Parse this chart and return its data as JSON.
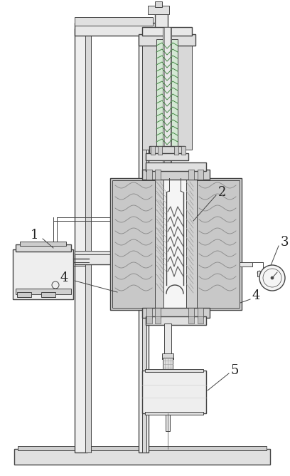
{
  "bg_color": "#ffffff",
  "lc": "#666666",
  "lc_dark": "#444444",
  "fill_white": "#ffffff",
  "fill_light": "#e8e8e8",
  "fill_med": "#cccccc",
  "fill_dark": "#aaaaaa",
  "fill_hatch": "#bbbbbb",
  "green_tint": "#c8d8c8",
  "figsize": [
    4.08,
    6.68
  ],
  "dpi": 100
}
